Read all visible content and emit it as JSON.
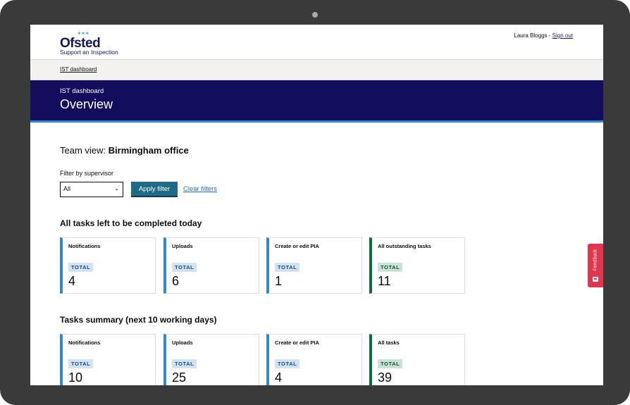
{
  "header": {
    "logo_word": "Ofsted",
    "logo_stars": "✶✶✶",
    "logo_subtitle": "Support an Inspection",
    "user_name": "Laura Bloggs",
    "separator": " - ",
    "sign_out_label": "Sign out"
  },
  "breadcrumb": {
    "item": "IST dashboard"
  },
  "banner": {
    "caption": "IST dashboard",
    "title": "Overview"
  },
  "team_view": {
    "prefix": "Team view: ",
    "office": "Birmingham office"
  },
  "filter": {
    "label": "Filter by supervisor",
    "selected": "All",
    "apply_label": "Apply filter",
    "clear_label": "Clear filters"
  },
  "sections": {
    "today": {
      "heading": "All tasks left to be completed today",
      "cards": [
        {
          "title": "Notifications",
          "badge": "TOTAL",
          "value": "4"
        },
        {
          "title": "Uploads",
          "badge": "TOTAL",
          "value": "6"
        },
        {
          "title": "Create or edit PIA",
          "badge": "TOTAL",
          "value": "1"
        },
        {
          "title": "All outstanding tasks",
          "badge": "TOTAL",
          "value": "11"
        }
      ]
    },
    "summary": {
      "heading": "Tasks summary (next 10 working days)",
      "cards": [
        {
          "title": "Notifications",
          "badge": "TOTAL",
          "value": "10"
        },
        {
          "title": "Uploads",
          "badge": "TOTAL",
          "value": "25"
        },
        {
          "title": "Create or edit PIA",
          "badge": "TOTAL",
          "value": "4"
        },
        {
          "title": "All tasks",
          "badge": "TOTAL",
          "value": "39"
        }
      ]
    }
  },
  "feedback_tab": {
    "label": "Feedback",
    "icon": "feedback-icon"
  },
  "colors": {
    "banner": "#120e5c",
    "accent_blue": "#2e8acb",
    "accent_green": "#0d6b3c",
    "button": "#1e6b87",
    "feedback": "#e0354c"
  }
}
